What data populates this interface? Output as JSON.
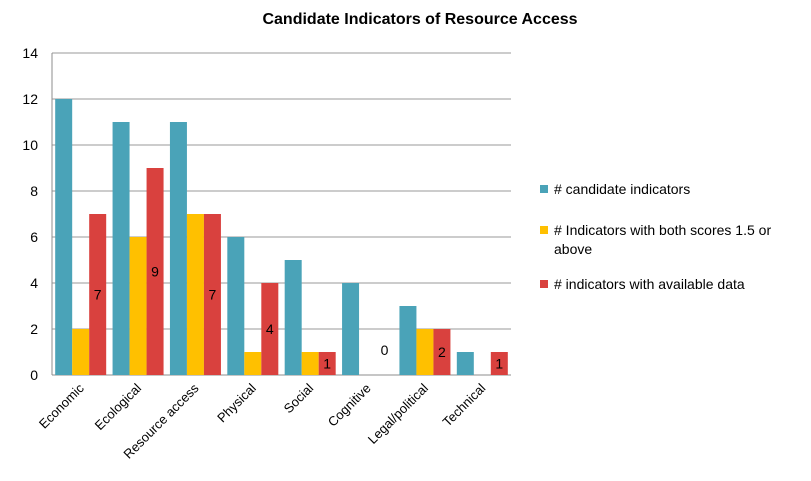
{
  "chart_data": {
    "type": "bar",
    "title": "Candidate Indicators of Resource Access",
    "categories": [
      "Economic",
      "Ecological",
      "Resource access",
      "Physical",
      "Social",
      "Cognitive",
      "Legal/political",
      "Technical"
    ],
    "series": [
      {
        "name": "# candidate indicators",
        "color": "#4aa3b8",
        "values": [
          12,
          11,
          11,
          6,
          5,
          4,
          3,
          1
        ]
      },
      {
        "name": "# Indicators with both scores 1.5 or above",
        "color": "#ffc000",
        "values": [
          2,
          6,
          7,
          1,
          1,
          0,
          2,
          0
        ]
      },
      {
        "name": "# indicators with available data",
        "color": "#d9413e",
        "values": [
          7,
          9,
          7,
          4,
          1,
          0,
          2,
          1
        ]
      }
    ],
    "data_labels": {
      "series": 2,
      "values": [
        "7",
        "9",
        "7",
        "4",
        "1",
        "0",
        "2",
        "1"
      ]
    },
    "ylim": [
      0,
      14
    ],
    "yticks": [
      0,
      2,
      4,
      6,
      8,
      10,
      12,
      14
    ],
    "grid": true,
    "legend_position": "right",
    "xlabel": "",
    "ylabel": ""
  }
}
